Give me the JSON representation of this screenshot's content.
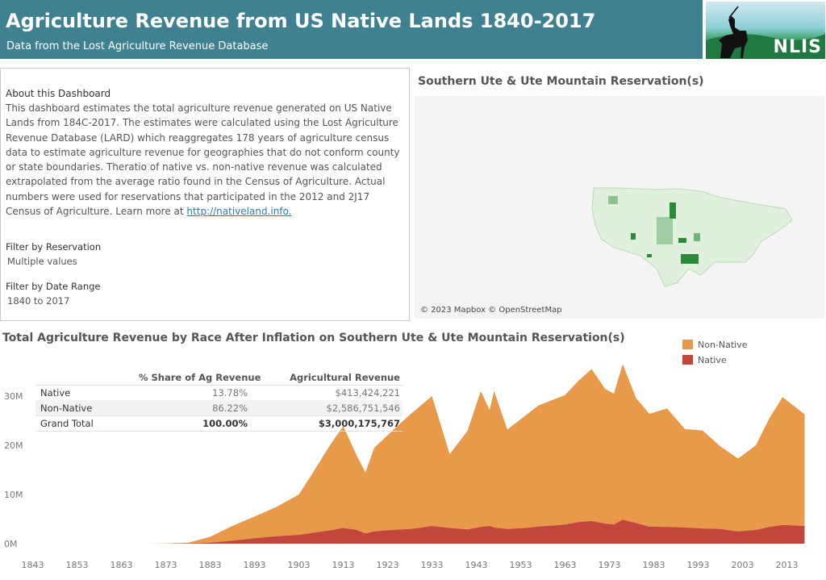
{
  "header": {
    "title": "Agriculture Revenue from US Native Lands 1840-2017",
    "subtitle": "Data from the Lost Agriculture Revenue Database",
    "logo_text": "NLIS"
  },
  "about": {
    "title": "About this Dashboard",
    "text": "This dashboard estimates the total agriculture revenue generated on US Native Lands from 184C-2017. The estimates were calculated using the Lost Agriculture Revenue Database (LARD) which reaggregates 178 years of agriculture census data to estimate agriculture revenue for geographies that do not conform county or state boundaries. Theratio of native vs. non-native revenue was calculated extrapolated from the average ratio found in the Census of Agriculture. Actual numbers were used for reservations that participated in the 2012 and 2J17 Census of Agriculture. Learn more at ",
    "link": "http://nativeland.info."
  },
  "filters": {
    "reservation_label": "Filter by Reservation",
    "reservation_value": "Multiple values",
    "date_label": "Filter by Date Range",
    "date_value": "1840 to 2017"
  },
  "map": {
    "title": "Southern Ute & Ute Mountain Reservation(s)",
    "credit": "© 2023 Mapbox © OpenStreetMap"
  },
  "table": {
    "headers": [
      "",
      "% Share of Ag Revenue",
      "Agricultural Revenue"
    ],
    "rows": [
      {
        "label": "Native",
        "share": "13.78%",
        "revenue": "$413,424,221"
      },
      {
        "label": "Non-Native",
        "share": "86.22%",
        "revenue": "$2,586,751,546"
      },
      {
        "label": "Grand Total",
        "share": "100.00%",
        "revenue": "$3,000,175,767"
      }
    ]
  },
  "colors": {
    "header_bg": "#3f8191",
    "non_native": "#e8994a",
    "native": "#c2463c"
  },
  "chart_data": {
    "type": "area",
    "title": "Total Agriculture Revenue by Race After Inflation on Southern Ute & Ute Mountain Reservation(s)",
    "stacked": true,
    "legend": "top-right",
    "ytick_labels": [
      "0M",
      "10M",
      "20M",
      "30M"
    ],
    "ylim": [
      0,
      36
    ],
    "xlim": [
      1840,
      2018
    ],
    "xtick_labels": [
      "1843",
      "1853",
      "1863",
      "1873",
      "1883",
      "1893",
      "1903",
      "1913",
      "1923",
      "1933",
      "1943",
      "1953",
      "1963",
      "1973",
      "1983",
      "1993",
      "2003",
      "2013"
    ],
    "x": [
      1853,
      1863,
      1868,
      1873,
      1878,
      1883,
      1888,
      1893,
      1898,
      1903,
      1906,
      1910,
      1913,
      1916,
      1918,
      1920,
      1924,
      1928,
      1930,
      1933,
      1937,
      1941,
      1944,
      1946,
      1947,
      1950,
      1954,
      1957,
      1963,
      1966,
      1969,
      1972,
      1974,
      1976,
      1979,
      1982,
      1986,
      1990,
      1994,
      1998,
      2002,
      2006,
      2009,
      2012,
      2017
    ],
    "series": [
      {
        "name": "Native",
        "values": [
          0,
          0,
          0,
          0,
          0.05,
          0.2,
          0.6,
          1.1,
          1.5,
          1.8,
          2.2,
          2.7,
          3.2,
          2.8,
          2.1,
          2.5,
          2.8,
          3.0,
          3.2,
          3.6,
          3.2,
          2.9,
          3.4,
          3.6,
          3.3,
          3.0,
          3.2,
          3.5,
          3.9,
          4.4,
          4.6,
          4.1,
          3.9,
          4.9,
          4.2,
          3.5,
          3.4,
          3.3,
          3.1,
          3.0,
          2.5,
          2.8,
          3.4,
          3.8,
          3.6
        ]
      },
      {
        "name": "Non-Native",
        "values": [
          0,
          0,
          0,
          0.05,
          0.15,
          1.2,
          3.0,
          4.4,
          6.0,
          8.2,
          12.0,
          17.3,
          20.7,
          15.2,
          12.4,
          17.0,
          20.1,
          23.2,
          24.5,
          26.4,
          15.0,
          20.0,
          27.6,
          23.6,
          27.7,
          20.2,
          22.8,
          24.6,
          26.3,
          28.7,
          30.9,
          27.4,
          26.6,
          31.6,
          25.4,
          22.9,
          24.1,
          20.0,
          19.9,
          16.8,
          14.8,
          17.2,
          22.0,
          26.0,
          22.7
        ]
      }
    ]
  }
}
